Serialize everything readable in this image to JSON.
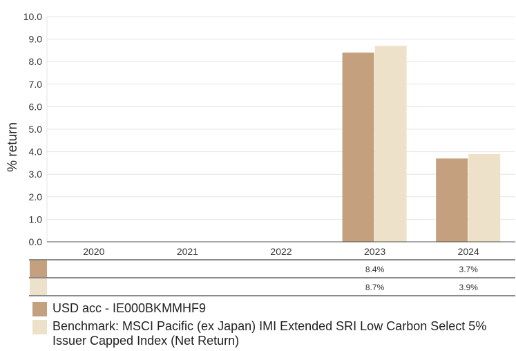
{
  "chart_data": {
    "type": "bar",
    "ylabel": "% return",
    "ylim": [
      0,
      10
    ],
    "yticks": [
      "0.0",
      "1.0",
      "2.0",
      "3.0",
      "4.0",
      "5.0",
      "6.0",
      "7.0",
      "8.0",
      "9.0",
      "10.0"
    ],
    "categories": [
      "2020",
      "2021",
      "2022",
      "2023",
      "2024"
    ],
    "grid": true,
    "series": [
      {
        "name": "USD acc - IE000BKMMHF9",
        "color": "#c4a07f",
        "values": [
          null,
          null,
          null,
          8.4,
          3.7
        ],
        "labels": [
          "",
          "",
          "",
          "8.4%",
          "3.7%"
        ]
      },
      {
        "name": "Benchmark: MSCI Pacific (ex Japan) IMI Extended SRI Low Carbon Select 5% Issuer Capped Index (Net Return)",
        "color": "#ede2c9",
        "values": [
          null,
          null,
          null,
          8.7,
          3.9
        ],
        "labels": [
          "",
          "",
          "",
          "8.7%",
          "3.9%"
        ]
      }
    ]
  }
}
